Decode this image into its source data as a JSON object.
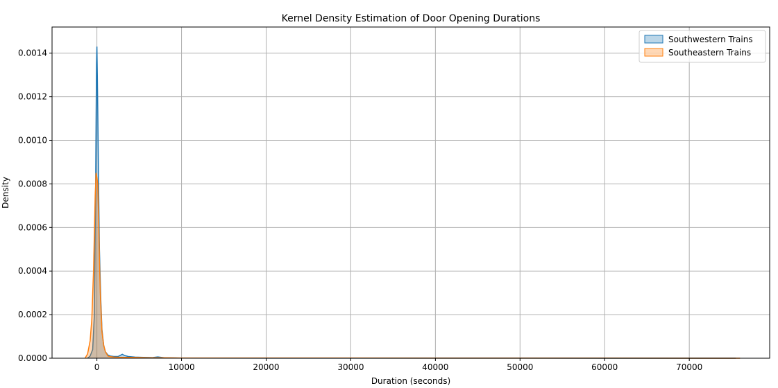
{
  "chart_data": {
    "type": "area",
    "title": "Kernel Density Estimation of Door Opening Durations",
    "xlabel": "Duration (seconds)",
    "ylabel": "Density",
    "xlim": [
      -5300,
      79500
    ],
    "ylim": [
      0,
      0.00152
    ],
    "xticks": [
      0,
      10000,
      20000,
      30000,
      40000,
      50000,
      60000,
      70000
    ],
    "xtick_labels": [
      "0",
      "10000",
      "20000",
      "30000",
      "40000",
      "50000",
      "60000",
      "70000"
    ],
    "yticks": [
      0,
      0.0002,
      0.0004,
      0.0006,
      0.0008,
      0.001,
      0.0012,
      0.0014
    ],
    "ytick_labels": [
      "0.0000",
      "0.0002",
      "0.0004",
      "0.0006",
      "0.0008",
      "0.0010",
      "0.0012",
      "0.0014"
    ],
    "grid": true,
    "legend_position": "top-right",
    "series": [
      {
        "name": "Southwestern Trains",
        "color": "#1f77b4",
        "x": [
          -1100,
          -800,
          -500,
          -300,
          -150,
          -50,
          0,
          50,
          100,
          200,
          300,
          450,
          600,
          800,
          1000,
          1300,
          1600,
          2000,
          2500,
          3000,
          3300,
          3700,
          4500,
          5500,
          6500,
          7200,
          8000,
          10000,
          20000,
          40000,
          60000,
          75500
        ],
        "y": [
          0,
          1e-05,
          4e-05,
          0.0002,
          0.0008,
          0.00135,
          0.00143,
          0.0013,
          0.00115,
          0.0008,
          0.0005,
          0.00028,
          0.00013,
          6e-05,
          3e-05,
          1.5e-05,
          1e-05,
          8e-06,
          8e-06,
          1.8e-05,
          1.2e-05,
          8e-06,
          5e-06,
          4e-06,
          3e-06,
          6e-06,
          2e-06,
          1e-06,
          5e-07,
          3e-07,
          2e-07,
          0
        ]
      },
      {
        "name": "Southeastern Trains",
        "color": "#ff7f0e",
        "x": [
          -1400,
          -1100,
          -800,
          -600,
          -400,
          -200,
          -100,
          0,
          100,
          200,
          300,
          400,
          600,
          800,
          1000,
          1300,
          1600,
          2000,
          3000,
          4000,
          5000,
          6000,
          8000,
          10000,
          20000,
          40000,
          60000,
          76000
        ],
        "y": [
          0,
          2e-05,
          8e-05,
          0.00018,
          0.0004,
          0.00075,
          0.00085,
          0.00083,
          0.0008,
          0.00065,
          0.00045,
          0.0003,
          0.00012,
          6e-05,
          3e-05,
          1e-05,
          7e-06,
          5e-06,
          4e-06,
          4e-06,
          3e-06,
          2e-06,
          2e-06,
          1e-06,
          8e-07,
          5e-07,
          4e-07,
          0
        ]
      }
    ]
  }
}
